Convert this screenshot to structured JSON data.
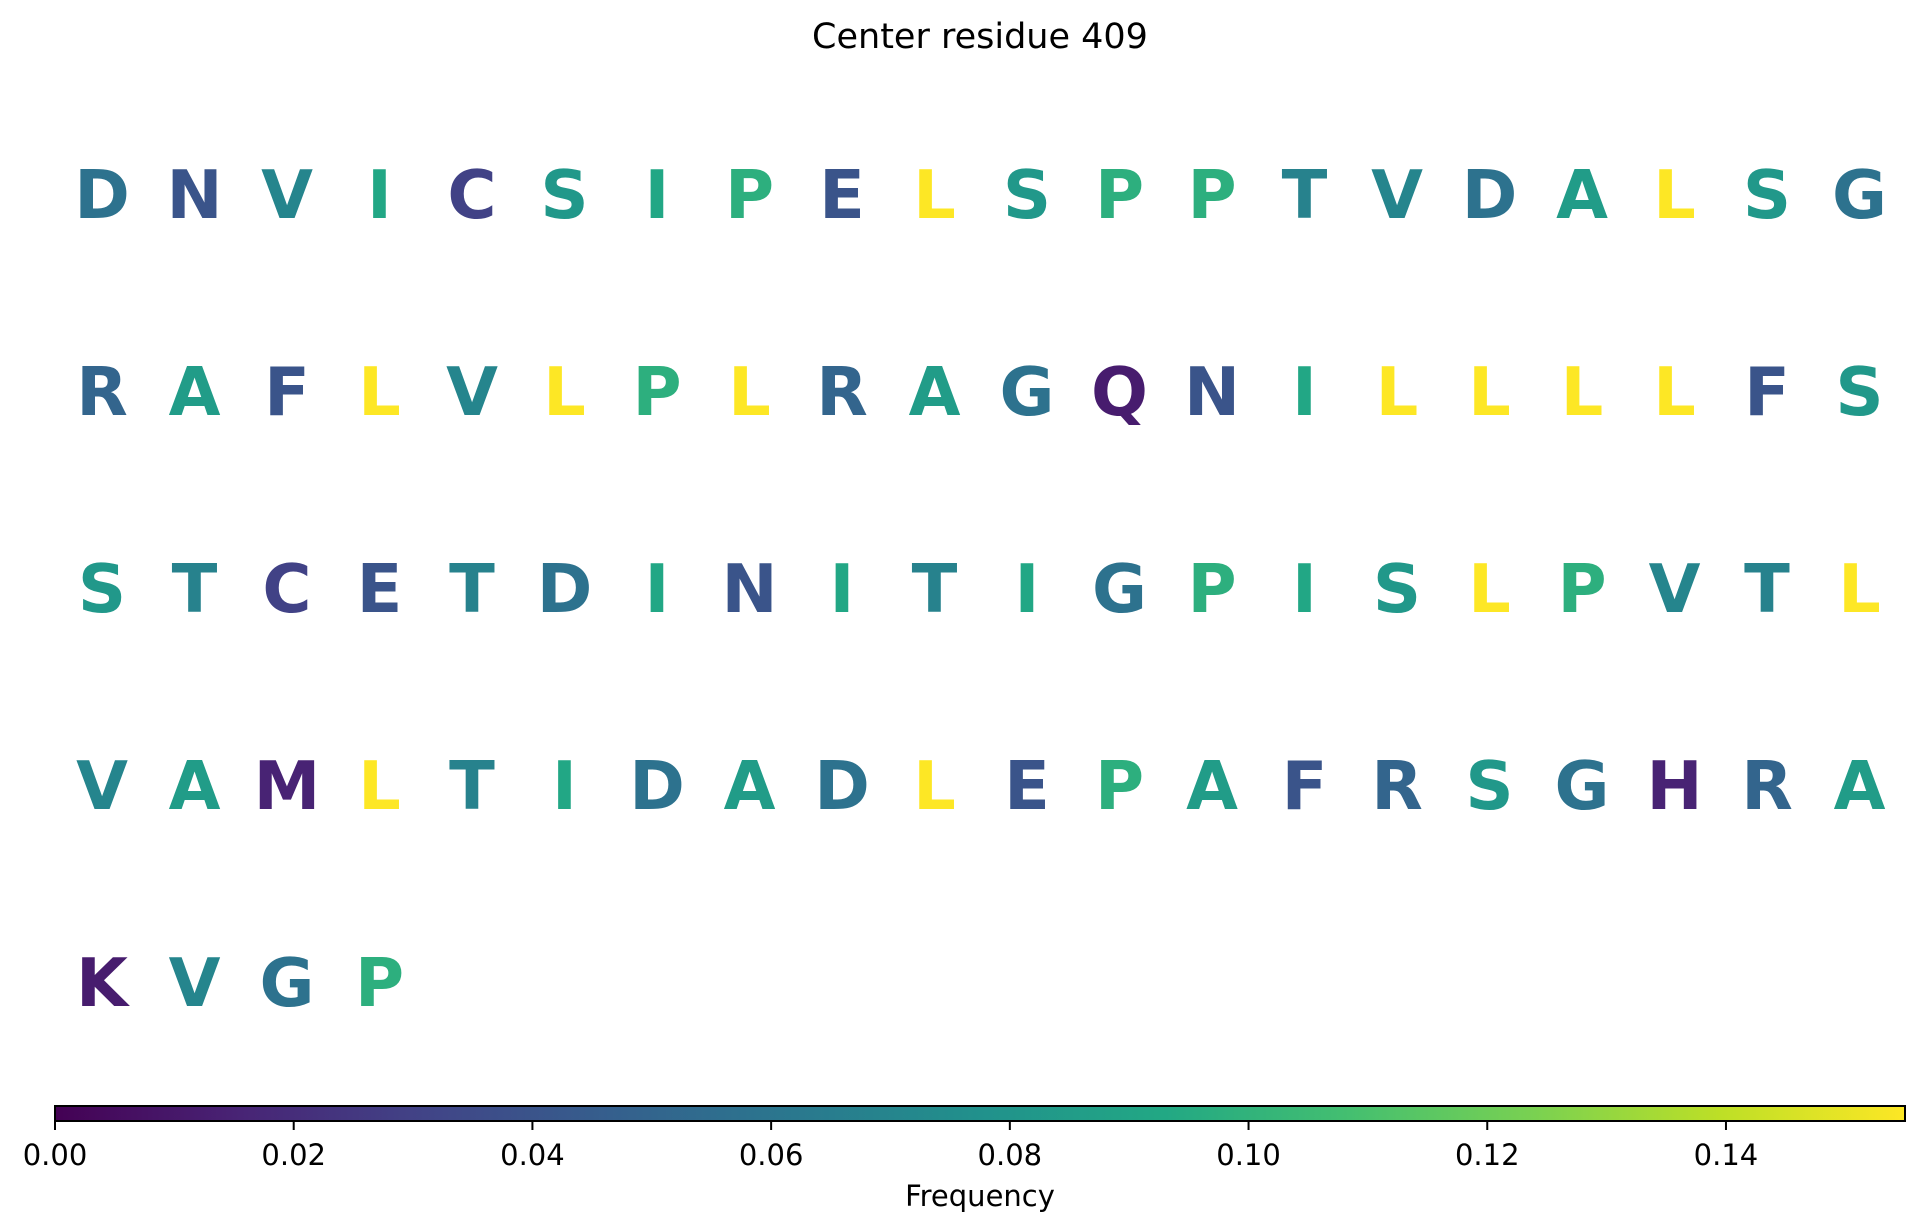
{
  "chart_data": {
    "type": "sequence-colored-text",
    "title": "Center residue 409",
    "colorbar": {
      "label": "Frequency",
      "range": [
        0,
        0.155
      ],
      "colormap": "viridis",
      "ticks": [
        "0.00",
        "0.02",
        "0.04",
        "0.06",
        "0.08",
        "0.10",
        "0.12",
        "0.14"
      ]
    },
    "residues_per_row": 20,
    "residues": [
      {
        "aa": "D",
        "freq": 0.058
      },
      {
        "aa": "N",
        "freq": 0.04
      },
      {
        "aa": "V",
        "freq": 0.07
      },
      {
        "aa": "I",
        "freq": 0.092
      },
      {
        "aa": "C",
        "freq": 0.03
      },
      {
        "aa": "S",
        "freq": 0.082
      },
      {
        "aa": "I",
        "freq": 0.092
      },
      {
        "aa": "P",
        "freq": 0.098
      },
      {
        "aa": "E",
        "freq": 0.04
      },
      {
        "aa": "L",
        "freq": 0.155
      },
      {
        "aa": "S",
        "freq": 0.082
      },
      {
        "aa": "P",
        "freq": 0.098
      },
      {
        "aa": "P",
        "freq": 0.098
      },
      {
        "aa": "T",
        "freq": 0.068
      },
      {
        "aa": "V",
        "freq": 0.07
      },
      {
        "aa": "D",
        "freq": 0.058
      },
      {
        "aa": "A",
        "freq": 0.085
      },
      {
        "aa": "L",
        "freq": 0.155
      },
      {
        "aa": "S",
        "freq": 0.082
      },
      {
        "aa": "G",
        "freq": 0.058
      },
      {
        "aa": "R",
        "freq": 0.05
      },
      {
        "aa": "A",
        "freq": 0.085
      },
      {
        "aa": "F",
        "freq": 0.04
      },
      {
        "aa": "L",
        "freq": 0.155
      },
      {
        "aa": "V",
        "freq": 0.07
      },
      {
        "aa": "L",
        "freq": 0.155
      },
      {
        "aa": "P",
        "freq": 0.098
      },
      {
        "aa": "L",
        "freq": 0.155
      },
      {
        "aa": "R",
        "freq": 0.05
      },
      {
        "aa": "A",
        "freq": 0.085
      },
      {
        "aa": "G",
        "freq": 0.058
      },
      {
        "aa": "Q",
        "freq": 0.012
      },
      {
        "aa": "N",
        "freq": 0.04
      },
      {
        "aa": "I",
        "freq": 0.092
      },
      {
        "aa": "L",
        "freq": 0.155
      },
      {
        "aa": "L",
        "freq": 0.155
      },
      {
        "aa": "L",
        "freq": 0.155
      },
      {
        "aa": "L",
        "freq": 0.155
      },
      {
        "aa": "F",
        "freq": 0.04
      },
      {
        "aa": "S",
        "freq": 0.082
      },
      {
        "aa": "S",
        "freq": 0.082
      },
      {
        "aa": "T",
        "freq": 0.068
      },
      {
        "aa": "C",
        "freq": 0.03
      },
      {
        "aa": "E",
        "freq": 0.04
      },
      {
        "aa": "T",
        "freq": 0.068
      },
      {
        "aa": "D",
        "freq": 0.058
      },
      {
        "aa": "I",
        "freq": 0.092
      },
      {
        "aa": "N",
        "freq": 0.04
      },
      {
        "aa": "I",
        "freq": 0.092
      },
      {
        "aa": "T",
        "freq": 0.068
      },
      {
        "aa": "I",
        "freq": 0.092
      },
      {
        "aa": "G",
        "freq": 0.058
      },
      {
        "aa": "P",
        "freq": 0.098
      },
      {
        "aa": "I",
        "freq": 0.092
      },
      {
        "aa": "S",
        "freq": 0.082
      },
      {
        "aa": "L",
        "freq": 0.155
      },
      {
        "aa": "P",
        "freq": 0.098
      },
      {
        "aa": "V",
        "freq": 0.07
      },
      {
        "aa": "T",
        "freq": 0.068
      },
      {
        "aa": "L",
        "freq": 0.155
      },
      {
        "aa": "V",
        "freq": 0.07
      },
      {
        "aa": "A",
        "freq": 0.085
      },
      {
        "aa": "M",
        "freq": 0.015
      },
      {
        "aa": "L",
        "freq": 0.155
      },
      {
        "aa": "T",
        "freq": 0.068
      },
      {
        "aa": "I",
        "freq": 0.092
      },
      {
        "aa": "D",
        "freq": 0.058
      },
      {
        "aa": "A",
        "freq": 0.085
      },
      {
        "aa": "D",
        "freq": 0.058
      },
      {
        "aa": "L",
        "freq": 0.155
      },
      {
        "aa": "E",
        "freq": 0.04
      },
      {
        "aa": "P",
        "freq": 0.098
      },
      {
        "aa": "A",
        "freq": 0.085
      },
      {
        "aa": "F",
        "freq": 0.04
      },
      {
        "aa": "R",
        "freq": 0.05
      },
      {
        "aa": "S",
        "freq": 0.082
      },
      {
        "aa": "G",
        "freq": 0.058
      },
      {
        "aa": "H",
        "freq": 0.015
      },
      {
        "aa": "R",
        "freq": 0.05
      },
      {
        "aa": "A",
        "freq": 0.085
      },
      {
        "aa": "K",
        "freq": 0.012
      },
      {
        "aa": "V",
        "freq": 0.07
      },
      {
        "aa": "G",
        "freq": 0.058
      },
      {
        "aa": "P",
        "freq": 0.098
      }
    ]
  }
}
